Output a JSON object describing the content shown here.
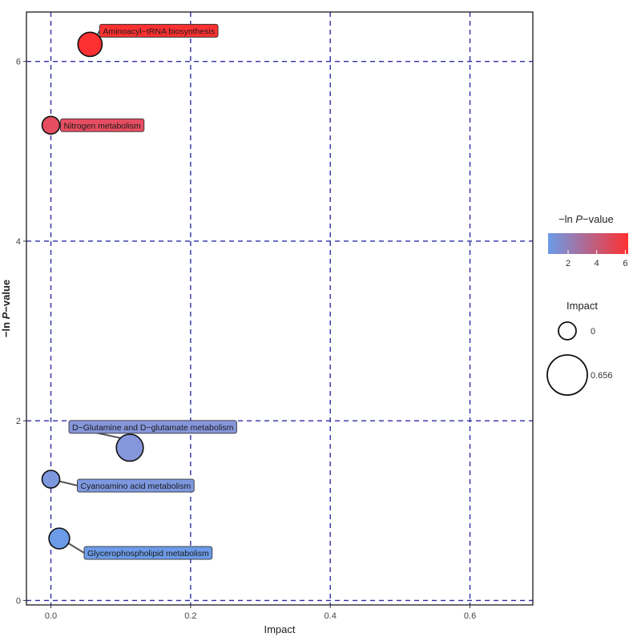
{
  "chart_data": {
    "type": "scatter",
    "xlabel": "Impact",
    "ylabel_prefix": "−ln ",
    "ylabel_italic": "P",
    "ylabel_suffix": "−value",
    "xlim": [
      -0.035,
      0.69
    ],
    "ylim": [
      -0.05,
      6.55
    ],
    "x_ticks": [
      0.0,
      0.2,
      0.4,
      0.6
    ],
    "x_tick_labels": [
      "0.0",
      "0.2",
      "0.4",
      "0.6"
    ],
    "y_ticks": [
      0,
      2,
      4,
      6
    ],
    "y_tick_labels": [
      "0",
      "2",
      "4",
      "6"
    ],
    "grid": true,
    "grid_color": "#2e2ea8",
    "color_scale": {
      "low": "#6a9ce8",
      "high": "#ff3030",
      "min": 0.6,
      "max": 6.2
    },
    "points": [
      {
        "name": "Aminoacyl−tRNA biosynthesis",
        "x": 0.056,
        "y": 6.19,
        "impact": 0.056
      },
      {
        "name": "Nitrogen metabolism",
        "x": 0.0,
        "y": 5.29,
        "impact": 0.0
      },
      {
        "name": "D−Glutamine and D−glutamate metabolism",
        "x": 0.113,
        "y": 1.7,
        "impact": 0.113
      },
      {
        "name": "Cyanoamino acid metabolism",
        "x": 0.0,
        "y": 1.35,
        "impact": 0.0
      },
      {
        "name": "Glycerophospholipid metabolism",
        "x": 0.012,
        "y": 0.69,
        "impact": 0.012
      }
    ],
    "legend_position": "right",
    "legend_color": {
      "title_prefix": "−ln ",
      "title_italic": "P",
      "title_suffix": "−value",
      "ticks": [
        2,
        4,
        6
      ],
      "tick_labels": [
        "2",
        "4",
        "6"
      ]
    },
    "legend_size": {
      "title": "Impact",
      "values": [
        0,
        0.656
      ],
      "labels": [
        "0",
        "0.656"
      ]
    }
  }
}
